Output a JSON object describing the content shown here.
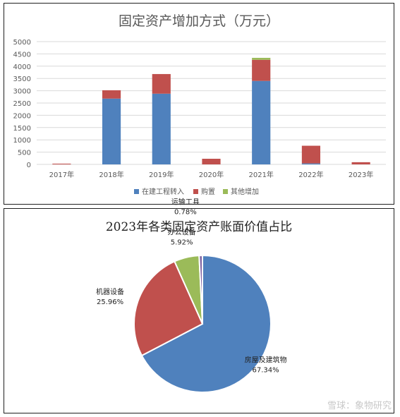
{
  "chart_data": [
    {
      "type": "bar",
      "stacked": true,
      "title": "固定资产增加方式（万元）",
      "categories": [
        "2017年",
        "2018年",
        "2019年",
        "2020年",
        "2021年",
        "2022年",
        "2023年"
      ],
      "series": [
        {
          "name": "在建工程转入",
          "color": "#4f81bd",
          "values": [
            0,
            2680,
            2880,
            0,
            3400,
            40,
            0
          ]
        },
        {
          "name": "购置",
          "color": "#c0504d",
          "values": [
            30,
            340,
            800,
            230,
            860,
            720,
            90
          ]
        },
        {
          "name": "其他增加",
          "color": "#9bbb59",
          "values": [
            0,
            0,
            0,
            0,
            80,
            0,
            0
          ]
        }
      ],
      "ylim": [
        0,
        5000
      ],
      "yticks": [
        0,
        500,
        1000,
        1500,
        2000,
        2500,
        3000,
        3500,
        4000,
        4500,
        5000
      ],
      "grid": true,
      "legend_position": "bottom"
    },
    {
      "type": "pie",
      "title": "2023年各类固定资产账面价值占比",
      "slices": [
        {
          "name": "房屋及建筑物",
          "value": 67.34,
          "label": "67.34%",
          "color": "#4f81bd"
        },
        {
          "name": "机器设备",
          "value": 25.96,
          "label": "25.96%",
          "color": "#c0504d"
        },
        {
          "name": "办公设备",
          "value": 5.92,
          "label": "5.92%",
          "color": "#9bbb59"
        },
        {
          "name": "运输工具",
          "value": 0.78,
          "label": "0.78%",
          "color": "#8064a2"
        }
      ]
    }
  ],
  "watermark": "雪球：象物研究"
}
